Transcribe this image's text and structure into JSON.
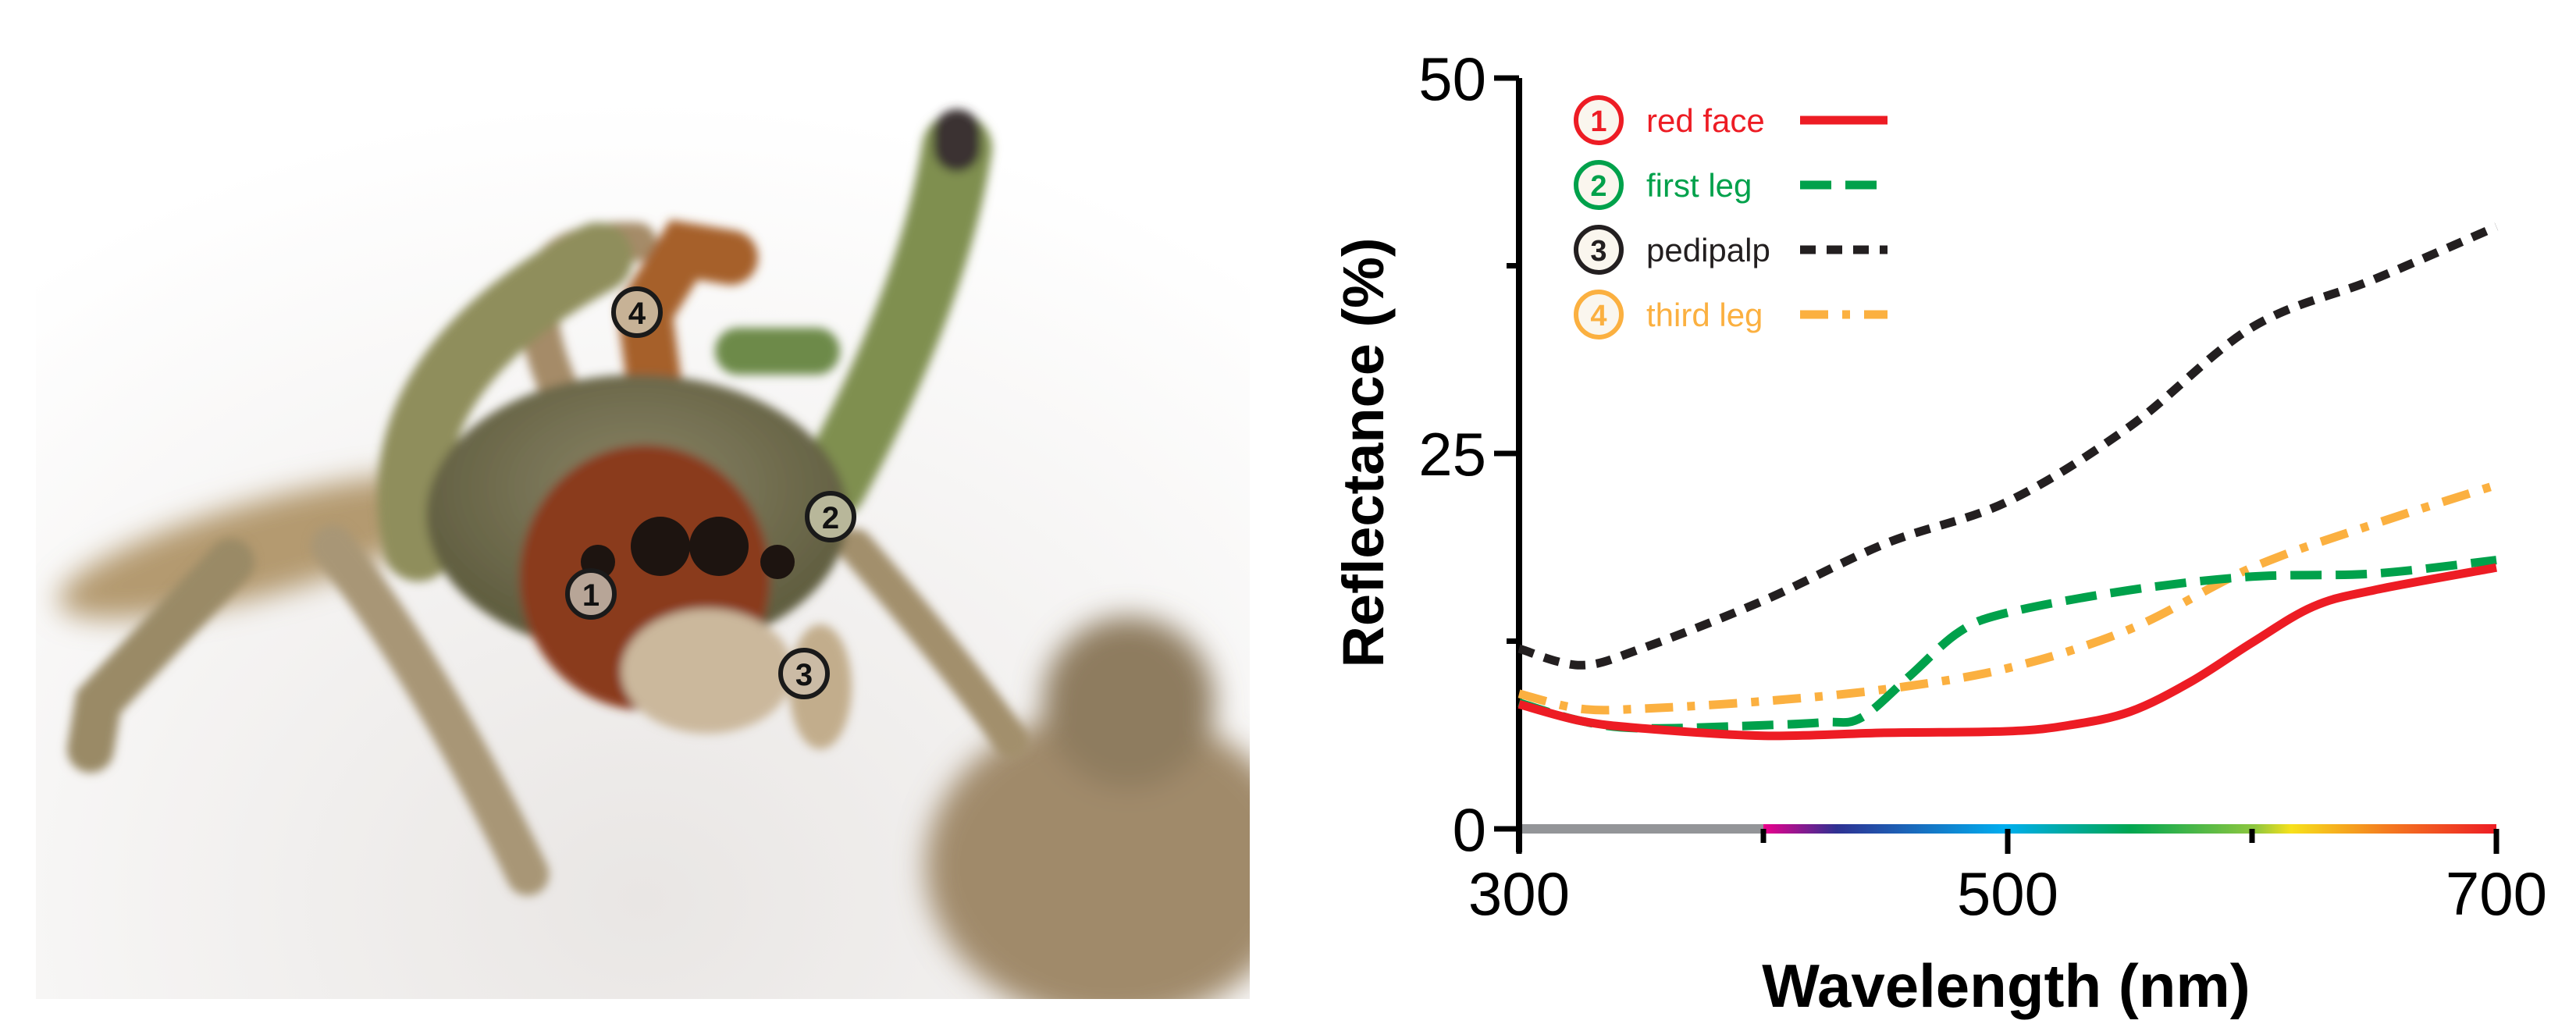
{
  "photo": {
    "markers": [
      {
        "label": "4",
        "part": "third leg"
      },
      {
        "label": "2",
        "part": "first leg"
      },
      {
        "label": "1",
        "part": "red face"
      },
      {
        "label": "3",
        "part": "pedipalp"
      }
    ]
  },
  "chart_data": {
    "type": "line",
    "title": "",
    "xlabel": "Wavelength (nm)",
    "ylabel": "Reflectance (%)",
    "xlim": [
      300,
      700
    ],
    "ylim": [
      0,
      50
    ],
    "x_ticks": [
      300,
      400,
      500,
      600,
      700
    ],
    "x_tick_labels": [
      "300",
      "",
      "500",
      "",
      "700"
    ],
    "y_ticks": [
      0,
      12.5,
      25,
      37.5,
      50
    ],
    "y_tick_labels": [
      "0",
      "",
      "25",
      "",
      "50"
    ],
    "grid": false,
    "legend_position": "top-left",
    "spectrum_bar": {
      "uv_range": [
        300,
        400
      ],
      "uv_color": "#939598",
      "visible_range": [
        400,
        700
      ]
    },
    "series": [
      {
        "name": "red face",
        "marker": "1",
        "color": "#ED1C24",
        "dash": "solid",
        "x": [
          300,
          325,
          350,
          400,
          450,
          500,
          525,
          550,
          575,
          600,
          625,
          650,
          700
        ],
        "y": [
          8.3,
          7.2,
          6.7,
          6.2,
          6.4,
          6.5,
          6.9,
          7.8,
          9.8,
          12.4,
          14.8,
          15.9,
          17.4
        ]
      },
      {
        "name": "first leg",
        "marker": "2",
        "color": "#00A14B",
        "dash": "dashed",
        "x": [
          300,
          325,
          350,
          400,
          425,
          440,
          460,
          480,
          500,
          550,
          600,
          650,
          700
        ],
        "y": [
          8.4,
          7.2,
          6.7,
          6.9,
          7.1,
          7.4,
          10.2,
          13.1,
          14.4,
          15.9,
          16.8,
          17.0,
          17.9
        ]
      },
      {
        "name": "pedipalp",
        "marker": "3",
        "color": "#231F20",
        "dash": "short-dashed",
        "x": [
          300,
          325,
          350,
          400,
          450,
          500,
          550,
          600,
          650,
          700
        ],
        "y": [
          12.0,
          10.9,
          12.0,
          15.2,
          19.0,
          21.8,
          26.8,
          33.4,
          36.6,
          40.1
        ]
      },
      {
        "name": "third leg",
        "marker": "4",
        "color": "#FBB040",
        "dash": "dash-dot",
        "x": [
          300,
          325,
          350,
          400,
          450,
          500,
          550,
          600,
          650,
          700
        ],
        "y": [
          9.0,
          8.0,
          8.0,
          8.5,
          9.3,
          10.7,
          13.3,
          17.4,
          20.3,
          22.9
        ]
      }
    ]
  }
}
